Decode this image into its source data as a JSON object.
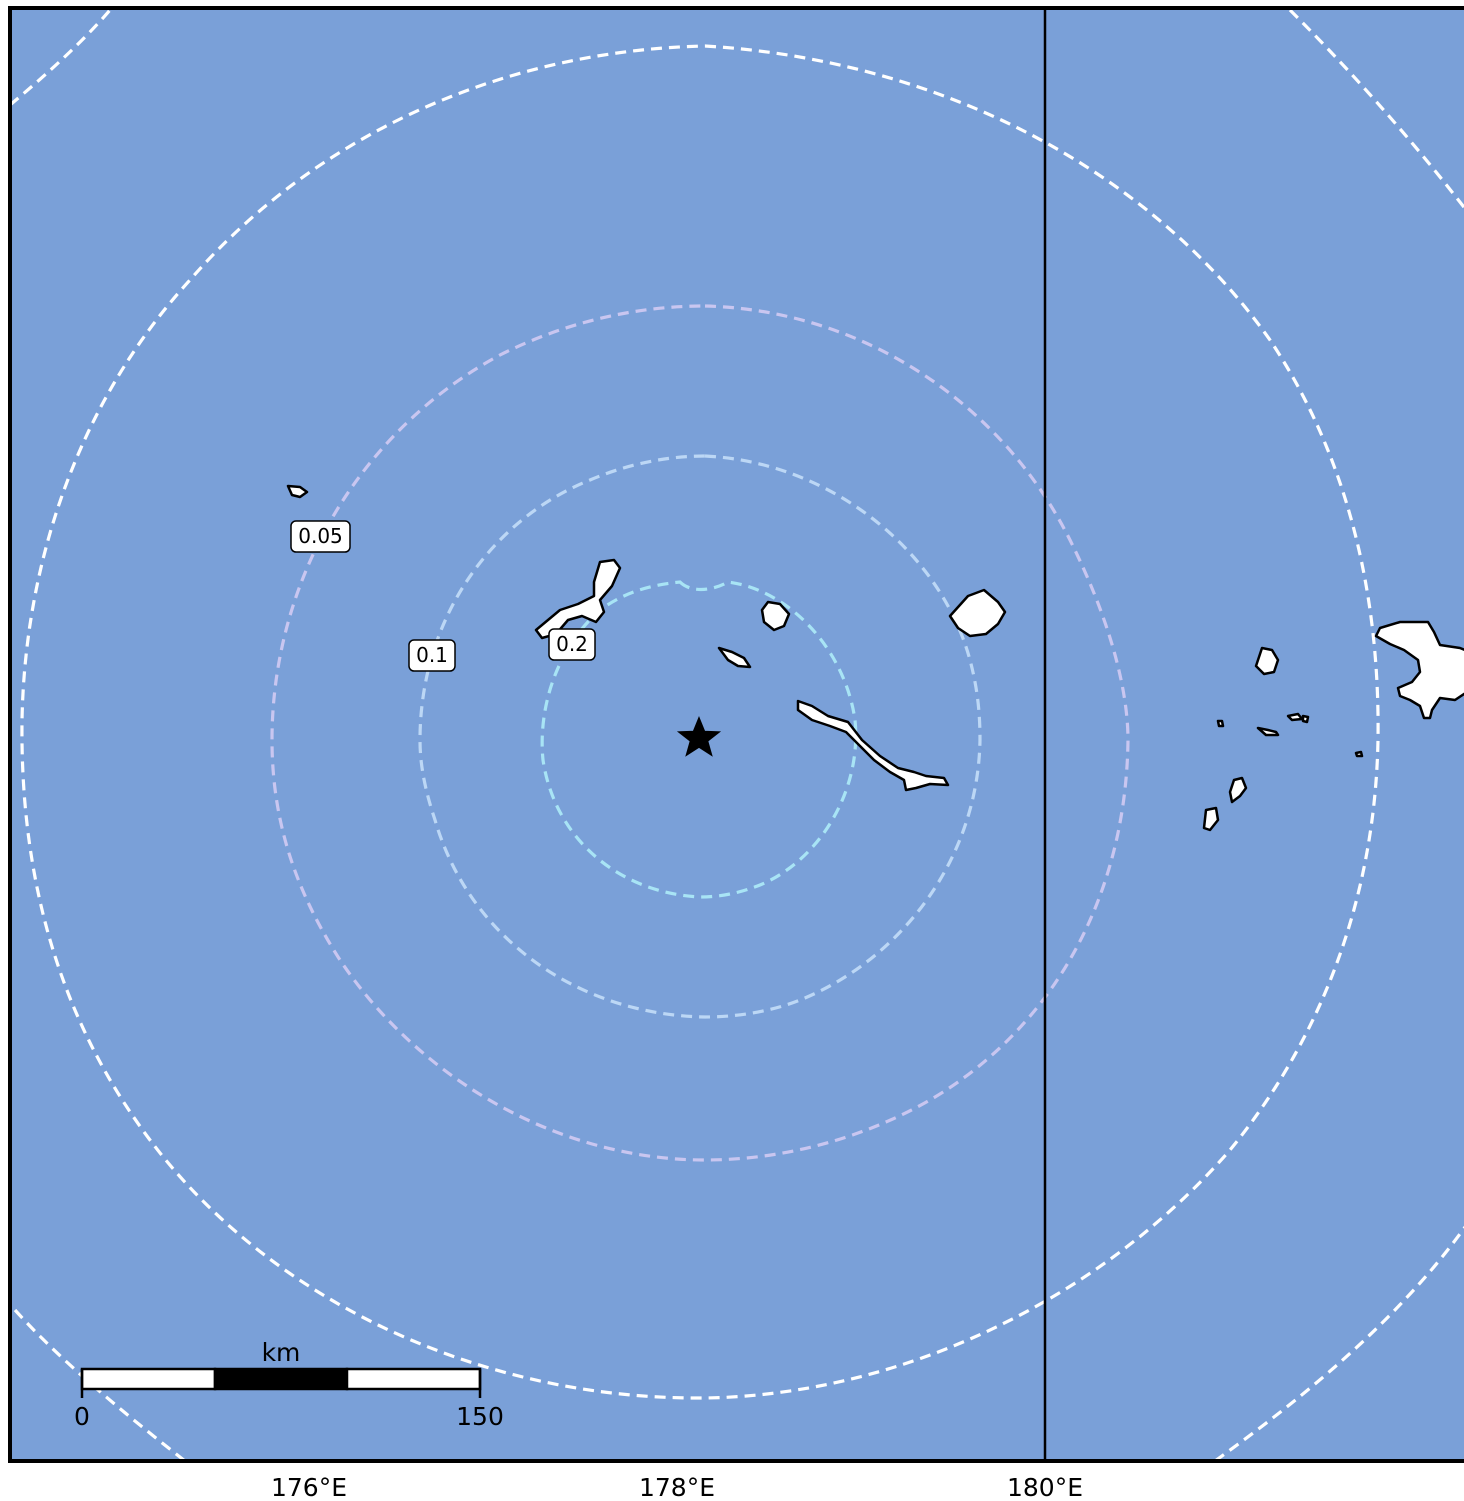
{
  "map": {
    "ocean_color": "#7aa0d8",
    "land_color": "#ffffff",
    "coast_color": "#000000",
    "epicenter": {
      "symbol": "star-icon",
      "color": "#000000"
    },
    "meridian_line": {
      "label": "180°E"
    }
  },
  "contours": {
    "labels": [
      "0.05",
      "0.1",
      "0.2"
    ],
    "colors": {
      "outer": "#ffffff",
      "mid": "#c9c6f0",
      "inner": "#bcd7f5",
      "innermost": "#a8e4f5"
    }
  },
  "scale_bar": {
    "unit": "km",
    "start": "0",
    "end": "150"
  },
  "axis": {
    "lon_ticks": [
      "176°E",
      "178°E",
      "180°E"
    ]
  }
}
